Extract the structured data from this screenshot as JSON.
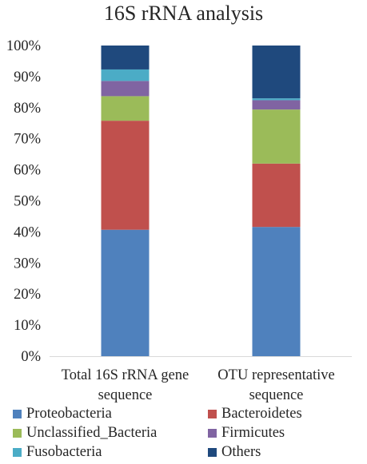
{
  "chart_data": {
    "type": "bar",
    "stacked": true,
    "percent": true,
    "title": "16S rRNA analysis",
    "categories": [
      [
        "Total 16S rRNA gene",
        "sequence"
      ],
      [
        "OTU representative",
        "sequence"
      ]
    ],
    "y_ticks": [
      "0%",
      "10%",
      "20%",
      "30%",
      "40%",
      "50%",
      "60%",
      "70%",
      "80%",
      "90%",
      "100%"
    ],
    "ylim": [
      0,
      100
    ],
    "grid": false,
    "legend_position": "bottom",
    "series": [
      {
        "name": "Proteobacteria",
        "color": "#4f81bd",
        "values": [
          40.7,
          41.6
        ]
      },
      {
        "name": "Bacteroidetes",
        "color": "#c0504d",
        "values": [
          35.1,
          20.4
        ]
      },
      {
        "name": "Unclassified_Bacteria",
        "color": "#9bbb59",
        "values": [
          7.9,
          17.4
        ]
      },
      {
        "name": "Firmicutes",
        "color": "#8064a2",
        "values": [
          4.9,
          3.0
        ]
      },
      {
        "name": "Fusobacteria",
        "color": "#4bacc6",
        "values": [
          3.7,
          0.6
        ]
      },
      {
        "name": "Others",
        "color": "#1f497d",
        "values": [
          7.7,
          17.0
        ]
      }
    ]
  }
}
